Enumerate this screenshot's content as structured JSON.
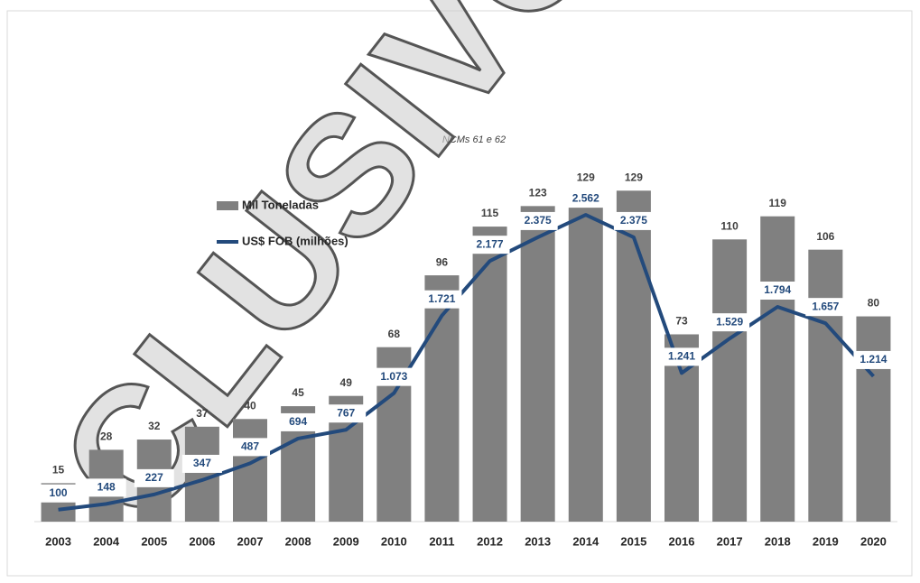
{
  "chart_data": {
    "type": "bar_line",
    "subtitle": "NCMs 61 e 62",
    "watermark": "CLUSIVO",
    "categories": [
      "2003",
      "2004",
      "2005",
      "2006",
      "2007",
      "2008",
      "2009",
      "2010",
      "2011",
      "2012",
      "2013",
      "2014",
      "2015",
      "2016",
      "2017",
      "2018",
      "2019",
      "2020"
    ],
    "series": [
      {
        "name": "Mil Toneladas",
        "color": "#808080",
        "type": "bar",
        "values": [
          15,
          28,
          32,
          37,
          40,
          45,
          49,
          68,
          96,
          115,
          123,
          129,
          129,
          73,
          110,
          119,
          106,
          80
        ]
      },
      {
        "name": "US$ FOB (milhões)",
        "color": "#234a7c",
        "type": "line",
        "axis": "y2",
        "values": [
          100,
          148,
          227,
          347,
          487,
          694,
          767,
          1073,
          1721,
          2177,
          2375,
          2562,
          2375,
          1241,
          1529,
          1794,
          1657,
          1214
        ],
        "value_labels": [
          "100",
          "148",
          "227",
          "347",
          "487",
          "694",
          "767",
          "1.073",
          "1.721",
          "2.177",
          "2.375",
          "2.562",
          "2.375",
          "1.241",
          "1.529",
          "1.794",
          "1.657",
          "1.214"
        ]
      }
    ],
    "ylim": [
      0,
      140
    ],
    "y2lim": [
      0,
      3000
    ],
    "grid": false
  }
}
